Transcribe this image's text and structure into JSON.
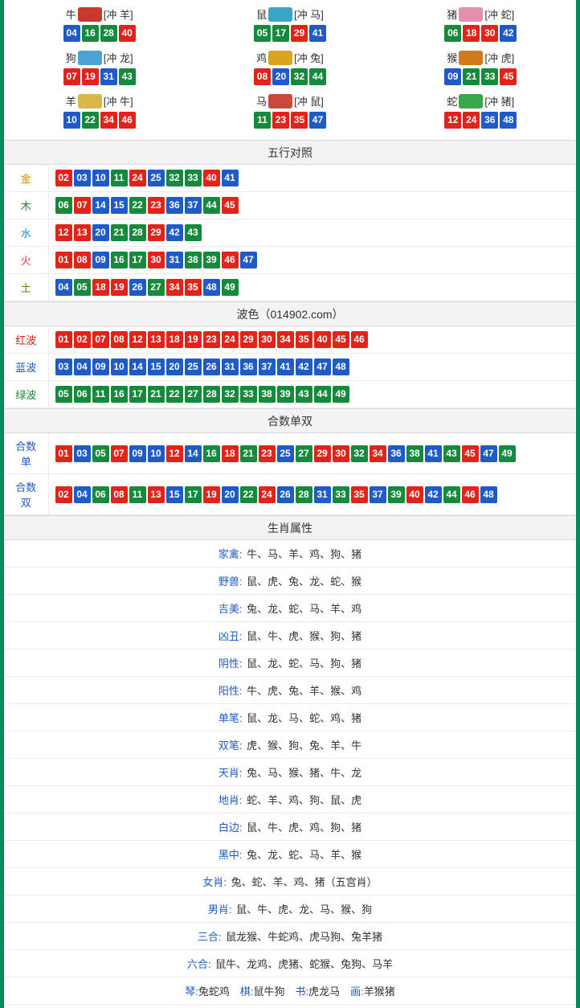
{
  "colors": {
    "border": "#008a5e",
    "red": "#e2231a",
    "blue": "#1e5bc6",
    "green": "#168a3c",
    "header_bg": "#f3f3f3",
    "row_border": "#ececec",
    "body_text": "#333333",
    "bg": "#ffffff",
    "label_colors": {
      "gold": "#d48a00",
      "wood": "#2e7d32",
      "water": "#1e88e5",
      "fire": "#e53935",
      "earth": "#8d6e00"
    },
    "zodiac_icon_bg": {
      "ox": "#c63a2e",
      "rat": "#3aa6c7",
      "pig": "#e58fb0",
      "dog": "#4aa3d6",
      "rooster": "#d9a51a",
      "monkey": "#d07a1a",
      "goat": "#d9b84a",
      "horse": "#c94a3a",
      "snake": "#3aa64a"
    }
  },
  "ball_color_map": {
    "01": "red",
    "02": "red",
    "07": "red",
    "08": "red",
    "12": "red",
    "13": "red",
    "18": "red",
    "19": "red",
    "23": "red",
    "24": "red",
    "29": "red",
    "30": "red",
    "34": "red",
    "35": "red",
    "40": "red",
    "45": "red",
    "46": "red",
    "03": "blue",
    "04": "blue",
    "09": "blue",
    "10": "blue",
    "14": "blue",
    "15": "blue",
    "20": "blue",
    "25": "blue",
    "26": "blue",
    "31": "blue",
    "36": "blue",
    "37": "blue",
    "41": "blue",
    "42": "blue",
    "47": "blue",
    "48": "blue",
    "05": "green",
    "06": "green",
    "11": "green",
    "16": "green",
    "17": "green",
    "21": "green",
    "22": "green",
    "27": "green",
    "28": "green",
    "32": "green",
    "33": "green",
    "38": "green",
    "39": "green",
    "43": "green",
    "44": "green",
    "49": "green"
  },
  "zodiac_grid": [
    {
      "name": "牛",
      "icon": "ox",
      "clash": "[冲 羊]",
      "numbers": [
        "04",
        "16",
        "28",
        "40"
      ]
    },
    {
      "name": "鼠",
      "icon": "rat",
      "clash": "[冲 马]",
      "numbers": [
        "05",
        "17",
        "29",
        "41"
      ]
    },
    {
      "name": "猪",
      "icon": "pig",
      "clash": "[冲 蛇]",
      "numbers": [
        "06",
        "18",
        "30",
        "42"
      ]
    },
    {
      "name": "狗",
      "icon": "dog",
      "clash": "[冲 龙]",
      "numbers": [
        "07",
        "19",
        "31",
        "43"
      ]
    },
    {
      "name": "鸡",
      "icon": "rooster",
      "clash": "[冲 兔]",
      "numbers": [
        "08",
        "20",
        "32",
        "44"
      ]
    },
    {
      "name": "猴",
      "icon": "monkey",
      "clash": "[冲 虎]",
      "numbers": [
        "09",
        "21",
        "33",
        "45"
      ]
    },
    {
      "name": "羊",
      "icon": "goat",
      "clash": "[冲 牛]",
      "numbers": [
        "10",
        "22",
        "34",
        "46"
      ]
    },
    {
      "name": "马",
      "icon": "horse",
      "clash": "[冲 鼠]",
      "numbers": [
        "11",
        "23",
        "35",
        "47"
      ]
    },
    {
      "name": "蛇",
      "icon": "snake",
      "clash": "[冲 猪]",
      "numbers": [
        "12",
        "24",
        "36",
        "48"
      ]
    }
  ],
  "wuxing": {
    "header": "五行对照",
    "rows": [
      {
        "label": "金",
        "label_class": "c-gold",
        "numbers": [
          "02",
          "03",
          "10",
          "11",
          "24",
          "25",
          "32",
          "33",
          "40",
          "41"
        ]
      },
      {
        "label": "木",
        "label_class": "c-wood",
        "numbers": [
          "06",
          "07",
          "14",
          "15",
          "22",
          "23",
          "36",
          "37",
          "44",
          "45"
        ]
      },
      {
        "label": "水",
        "label_class": "c-water",
        "numbers": [
          "12",
          "13",
          "20",
          "21",
          "28",
          "29",
          "42",
          "43"
        ]
      },
      {
        "label": "火",
        "label_class": "c-fire",
        "numbers": [
          "01",
          "08",
          "09",
          "16",
          "17",
          "30",
          "31",
          "38",
          "39",
          "46",
          "47"
        ]
      },
      {
        "label": "土",
        "label_class": "c-earth",
        "numbers": [
          "04",
          "05",
          "18",
          "19",
          "26",
          "27",
          "34",
          "35",
          "48",
          "49"
        ]
      }
    ]
  },
  "bose": {
    "header": "波色（014902.com）",
    "rows": [
      {
        "label": "红波",
        "label_class": "c-red",
        "numbers": [
          "01",
          "02",
          "07",
          "08",
          "12",
          "13",
          "18",
          "19",
          "23",
          "24",
          "29",
          "30",
          "34",
          "35",
          "40",
          "45",
          "46"
        ]
      },
      {
        "label": "蓝波",
        "label_class": "c-blue",
        "numbers": [
          "03",
          "04",
          "09",
          "10",
          "14",
          "15",
          "20",
          "25",
          "26",
          "31",
          "36",
          "37",
          "41",
          "42",
          "47",
          "48"
        ]
      },
      {
        "label": "绿波",
        "label_class": "c-green",
        "numbers": [
          "05",
          "06",
          "11",
          "16",
          "17",
          "21",
          "22",
          "27",
          "28",
          "32",
          "33",
          "38",
          "39",
          "43",
          "44",
          "49"
        ]
      }
    ]
  },
  "heshu": {
    "header": "合数单双",
    "rows": [
      {
        "label": "合数单",
        "label_class": "c-link",
        "numbers": [
          "01",
          "03",
          "05",
          "07",
          "09",
          "10",
          "12",
          "14",
          "16",
          "18",
          "21",
          "23",
          "25",
          "27",
          "29",
          "30",
          "32",
          "34",
          "36",
          "38",
          "41",
          "43",
          "45",
          "47",
          "49"
        ]
      },
      {
        "label": "合数双",
        "label_class": "c-link",
        "numbers": [
          "02",
          "04",
          "06",
          "08",
          "11",
          "13",
          "15",
          "17",
          "19",
          "20",
          "22",
          "24",
          "26",
          "28",
          "31",
          "33",
          "35",
          "37",
          "39",
          "40",
          "42",
          "44",
          "46",
          "48"
        ]
      }
    ]
  },
  "shuxing": {
    "header": "生肖属性",
    "rows": [
      {
        "key": "家禽:",
        "key_class": "c-link",
        "value": "牛、马、羊、鸡、狗、猪"
      },
      {
        "key": "野兽:",
        "key_class": "c-link",
        "value": "鼠、虎、兔、龙、蛇、猴"
      },
      {
        "key": "吉美:",
        "key_class": "c-link",
        "value": "兔、龙、蛇、马、羊、鸡"
      },
      {
        "key": "凶丑:",
        "key_class": "c-link",
        "value": "鼠、牛、虎、猴、狗、猪"
      },
      {
        "key": "阴性:",
        "key_class": "c-link",
        "value": "鼠、龙、蛇、马、狗、猪"
      },
      {
        "key": "阳性:",
        "key_class": "c-link",
        "value": "牛、虎、兔、羊、猴、鸡"
      },
      {
        "key": "单笔:",
        "key_class": "c-link",
        "value": "鼠、龙、马、蛇、鸡、猪"
      },
      {
        "key": "双笔:",
        "key_class": "c-link",
        "value": "虎、猴、狗、兔、羊、牛"
      },
      {
        "key": "天肖:",
        "key_class": "c-link",
        "value": "兔、马、猴、猪、牛、龙"
      },
      {
        "key": "地肖:",
        "key_class": "c-link",
        "value": "蛇、羊、鸡、狗、鼠、虎"
      },
      {
        "key": "白边:",
        "key_class": "c-link",
        "value": "鼠、牛、虎、鸡、狗、猪"
      },
      {
        "key": "黑中:",
        "key_class": "c-link",
        "value": "兔、龙、蛇、马、羊、猴"
      },
      {
        "key": "女肖:",
        "key_class": "c-link",
        "value": "兔、蛇、羊、鸡、猪（五宫肖）"
      },
      {
        "key": "男肖:",
        "key_class": "c-link",
        "value": "鼠、牛、虎、龙、马、猴、狗"
      },
      {
        "key": "三合:",
        "key_class": "c-link",
        "value": "鼠龙猴、牛蛇鸡、虎马狗、兔羊猪"
      },
      {
        "key": "六合:",
        "key_class": "c-link",
        "value": "鼠牛、龙鸡、虎猪、蛇猴、兔狗、马羊"
      }
    ],
    "footer_parts": [
      {
        "k": "琴:",
        "v": "兔蛇鸡"
      },
      {
        "k": "棋:",
        "v": "鼠牛狗"
      },
      {
        "k": "书:",
        "v": "虎龙马"
      },
      {
        "k": "画:",
        "v": "羊猴猪"
      }
    ]
  }
}
